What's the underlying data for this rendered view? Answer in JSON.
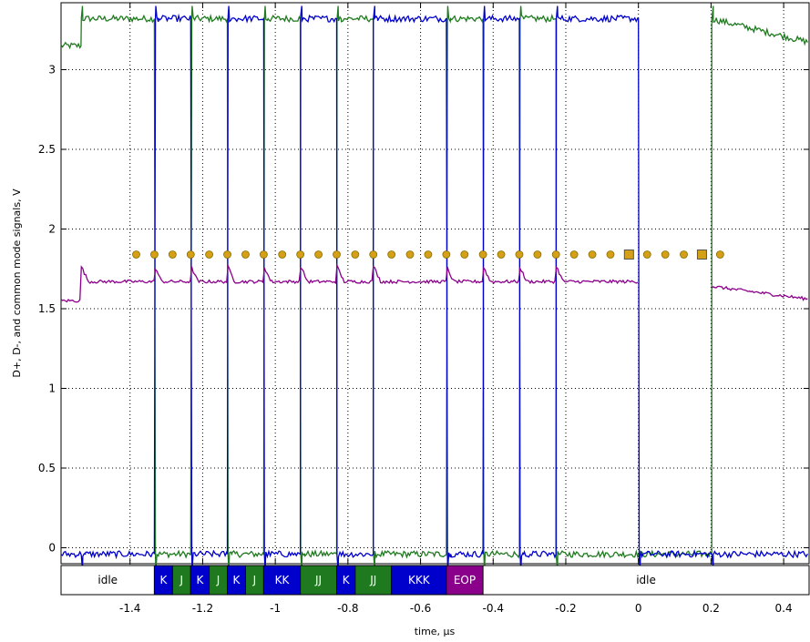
{
  "chart_data": {
    "type": "line",
    "title": "",
    "xlabel": "time, µs",
    "ylabel": "D+, D-, and common mode signals, V",
    "xlim": [
      -1.59,
      0.47
    ],
    "ylim": [
      -0.1,
      3.42
    ],
    "x_ticks": [
      -1.4,
      -1.2,
      -1,
      -0.8,
      -0.6,
      -0.4,
      -0.2,
      0,
      0.2,
      0.4
    ],
    "x_tick_labels": [
      "-1.4",
      "-1.2",
      "-1",
      "-0.8",
      "-0.6",
      "-0.4",
      "-0.2",
      "0",
      "0.2",
      "0.4"
    ],
    "y_ticks": [
      0,
      0.5,
      1,
      1.5,
      2,
      2.5,
      3
    ],
    "y_tick_labels": [
      "0",
      "0.5",
      "1",
      "1.5",
      "2",
      "2.5",
      "3"
    ],
    "grid": true,
    "grid_style": "dotted",
    "colors": {
      "d_plus": "#1f7a1f",
      "d_minus": "#0000cc",
      "common_mode": "#8b008b",
      "sample_marker": "#d4a017",
      "seg_k": "#0000cc",
      "seg_j": "#1f7a1f",
      "seg_eop": "#8b008b",
      "seg_idle": "#ffffff"
    },
    "levels": {
      "high": 3.32,
      "low": -0.04,
      "cm_idle": 1.55,
      "cm_active": 1.67
    },
    "transitions": [
      -1.535,
      -1.333,
      -1.233,
      -1.132,
      -1.032,
      -0.931,
      -0.831,
      -0.73,
      -0.529,
      -0.428,
      -0.328,
      -0.227,
      0,
      0.202
    ],
    "line_states": [
      "J",
      "K",
      "J",
      "K",
      "J",
      "K",
      "J",
      "K",
      "J",
      "K",
      "J",
      "K",
      "SE0",
      "J"
    ],
    "sample_points": {
      "y": 1.84,
      "x": [
        -1.383,
        -1.333,
        -1.283,
        -1.233,
        -1.182,
        -1.132,
        -1.082,
        -1.032,
        -0.981,
        -0.931,
        -0.881,
        -0.831,
        -0.78,
        -0.73,
        -0.68,
        -0.629,
        -0.579,
        -0.529,
        -0.479,
        -0.428,
        -0.378,
        -0.328,
        -0.278,
        -0.227,
        -0.177,
        -0.127,
        -0.077,
        -0.026,
        0.024,
        0.074,
        0.125,
        0.175,
        0.225
      ],
      "square_markers_at": [
        -0.026,
        0.175
      ]
    },
    "segments": [
      {
        "label": "idle",
        "start": -1.59,
        "end": -1.333,
        "kind": "idle"
      },
      {
        "label": "K",
        "start": -1.333,
        "end": -1.283,
        "kind": "K"
      },
      {
        "label": "J",
        "start": -1.283,
        "end": -1.233,
        "kind": "J"
      },
      {
        "label": "K",
        "start": -1.233,
        "end": -1.182,
        "kind": "K"
      },
      {
        "label": "J",
        "start": -1.182,
        "end": -1.132,
        "kind": "J"
      },
      {
        "label": "K",
        "start": -1.132,
        "end": -1.082,
        "kind": "K"
      },
      {
        "label": "J",
        "start": -1.082,
        "end": -1.032,
        "kind": "J"
      },
      {
        "label": "KK",
        "start": -1.032,
        "end": -0.931,
        "kind": "K"
      },
      {
        "label": "JJ",
        "start": -0.931,
        "end": -0.831,
        "kind": "J"
      },
      {
        "label": "K",
        "start": -0.831,
        "end": -0.78,
        "kind": "K"
      },
      {
        "label": "JJ",
        "start": -0.78,
        "end": -0.68,
        "kind": "J"
      },
      {
        "label": "KKK",
        "start": -0.68,
        "end": -0.529,
        "kind": "K"
      },
      {
        "label": "EOP",
        "start": -0.529,
        "end": -0.428,
        "kind": "EOP"
      },
      {
        "label": "idle",
        "start": -0.428,
        "end": 0.47,
        "kind": "idle"
      }
    ]
  }
}
